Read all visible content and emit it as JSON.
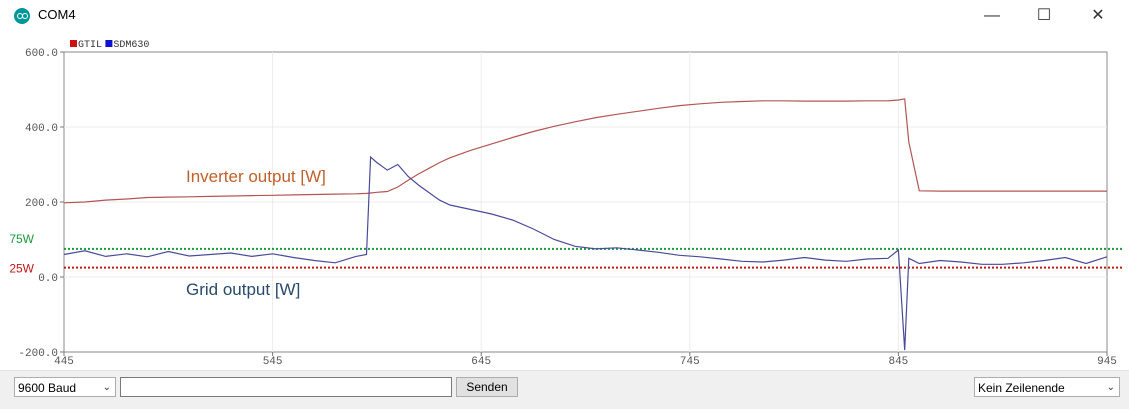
{
  "window": {
    "title": "COM4",
    "minimize": "—",
    "maximize": "☐",
    "close": "✕"
  },
  "colors": {
    "gtil": "#d01010",
    "sdm630": "#1010d0",
    "inverter_line": "#b55555",
    "grid_line": "#4a4a9a",
    "inverter_text": "#c0602a",
    "grid_text": "#2a4a6a",
    "line75": "#1a9a3a",
    "line25": "#c01818"
  },
  "chart_data": {
    "type": "line",
    "x": [
      445,
      455,
      465,
      475,
      485,
      495,
      505,
      515,
      525,
      535,
      545,
      555,
      565,
      575,
      585,
      590,
      592,
      595,
      600,
      605,
      610,
      615,
      620,
      625,
      630,
      640,
      650,
      660,
      670,
      680,
      690,
      700,
      710,
      720,
      730,
      740,
      750,
      760,
      770,
      780,
      790,
      800,
      810,
      820,
      830,
      840,
      845,
      848,
      850,
      855,
      865,
      875,
      885,
      895,
      905,
      915,
      925,
      935,
      945
    ],
    "xlim": [
      445,
      945
    ],
    "ylim": [
      -200,
      600
    ],
    "xticks": [
      "445",
      "545",
      "645",
      "745",
      "845",
      "945"
    ],
    "yticks": [
      "600.0",
      "400.0",
      "200.0",
      "0.0",
      "-200.0"
    ],
    "legend": [
      "GTIL",
      "SDM630"
    ],
    "legend_position": "top-left",
    "series": [
      {
        "name": "GTIL",
        "values": [
          198,
          200,
          205,
          208,
          212,
          213,
          214,
          215,
          216,
          217,
          218,
          219,
          220,
          221,
          222,
          223,
          224,
          226,
          228,
          240,
          258,
          275,
          290,
          305,
          318,
          338,
          355,
          372,
          388,
          402,
          414,
          425,
          434,
          442,
          450,
          457,
          462,
          466,
          468,
          470,
          470,
          469,
          469,
          469,
          470,
          470,
          472,
          475,
          360,
          230,
          229,
          229,
          229,
          229,
          229,
          229,
          229,
          229,
          229
        ]
      },
      {
        "name": "SDM630",
        "values": [
          60,
          70,
          55,
          62,
          54,
          68,
          56,
          60,
          64,
          55,
          62,
          52,
          44,
          38,
          55,
          60,
          320,
          305,
          285,
          300,
          268,
          245,
          225,
          205,
          192,
          180,
          168,
          152,
          128,
          100,
          82,
          75,
          78,
          72,
          66,
          58,
          54,
          48,
          42,
          40,
          45,
          52,
          45,
          42,
          48,
          50,
          72,
          -195,
          50,
          36,
          44,
          40,
          34,
          34,
          38,
          44,
          52,
          36,
          54
        ]
      }
    ],
    "annotations": [
      "Inverter output [W]",
      "Grid output [W]",
      "75W",
      "25W"
    ],
    "reference_lines": [
      {
        "label": "75W",
        "y": 75
      },
      {
        "label": "25W",
        "y": 25
      }
    ]
  },
  "bottom": {
    "baud": "9600 Baud",
    "input_value": "",
    "send": "Senden",
    "line_ending": "Kein Zeilenende"
  }
}
